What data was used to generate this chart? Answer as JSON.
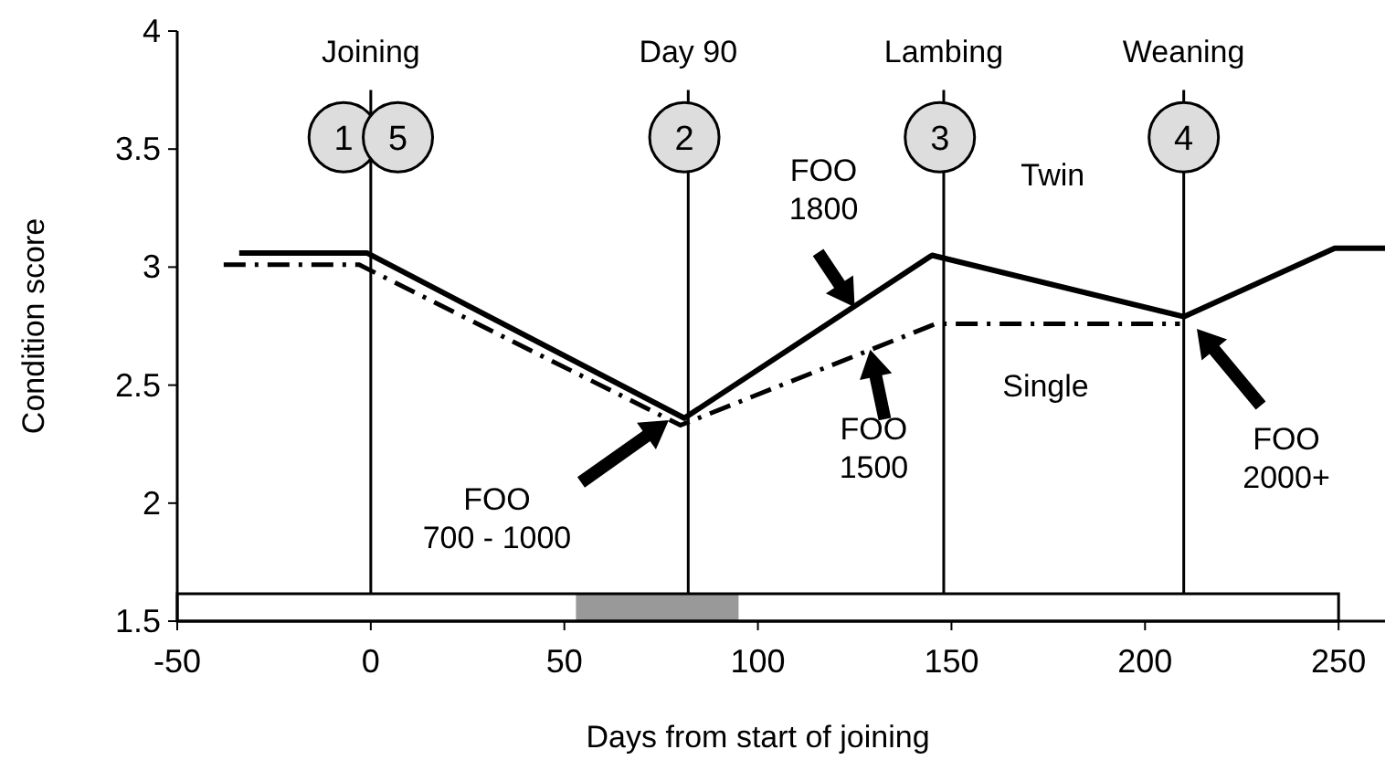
{
  "chart_data": {
    "type": "line",
    "xlabel": "Days from start of joining",
    "ylabel": "Condition score",
    "xlim": [
      -50,
      262
    ],
    "xticks": [
      -50,
      0,
      50,
      100,
      150,
      200,
      250
    ],
    "ylim": [
      1.5,
      4
    ],
    "yticks": [
      1.5,
      2,
      2.5,
      3,
      3.5,
      4
    ],
    "grid": false,
    "series": [
      {
        "name": "Twin",
        "color": "#000000",
        "line_style": "solid",
        "x": [
          -34,
          -1,
          81,
          145,
          210,
          249,
          262
        ],
        "values": [
          3.06,
          3.06,
          2.36,
          3.05,
          2.79,
          3.08,
          3.08
        ]
      },
      {
        "name": "Single",
        "color": "#000000",
        "line_style": "dashed",
        "x": [
          -38,
          -3,
          80,
          146,
          209
        ],
        "values": [
          3.01,
          3.01,
          2.33,
          2.76,
          2.76
        ]
      }
    ],
    "ref_lines": [
      {
        "axis": "x",
        "value": 0,
        "label": "Joining"
      },
      {
        "axis": "x",
        "value": 82,
        "label": "Day 90"
      },
      {
        "axis": "x",
        "value": 148,
        "label": "Lambing"
      },
      {
        "axis": "x",
        "value": 210,
        "label": "Weaning"
      }
    ],
    "bands": [
      {
        "axis": "x",
        "from": 53,
        "to": 95,
        "color": "#999999"
      }
    ],
    "annotations": [
      {
        "text": "1",
        "x": -7,
        "y": 3.55
      },
      {
        "text": "5",
        "x": 7,
        "y": 3.55
      },
      {
        "text": "2",
        "x": 81,
        "y": 3.55
      },
      {
        "text": "3",
        "x": 147,
        "y": 3.55
      },
      {
        "text": "4",
        "x": 210,
        "y": 3.55
      },
      "FOO\n700 - 1000",
      {
        "text": "FOO\n1800",
        "x": 125,
        "y": 2.83
      },
      {
        "text": "FOO\n1500",
        "x": 129,
        "y": 2.65
      },
      "FOO\n2000+"
    ]
  }
}
